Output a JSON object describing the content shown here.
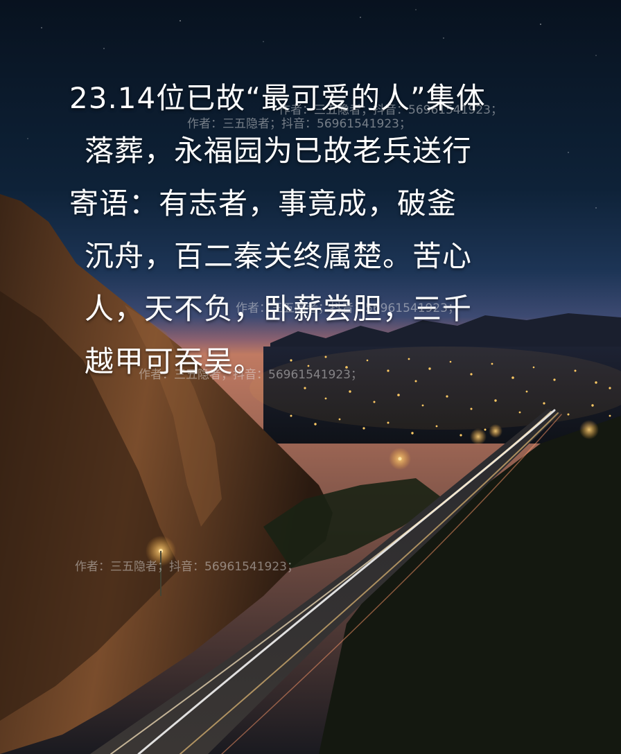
{
  "poem": {
    "lines": [
      "23.14位已故“最可爱的人”集体",
      "落葬，永福园为已故老兵送行",
      "寄语：有志者，事竟成，破釜",
      "沉舟，百二秦关终属楚。苦心",
      "人，天不负，卧薪尝胆，三千",
      "越甲可吞吴。"
    ]
  },
  "watermark": {
    "text": "作者：三五隐者；抖音：56961541923；"
  },
  "colors": {
    "sky_top": "#0a1a2c",
    "sky_horizon": "#3a4a70",
    "horizon_glow": "#b0655a",
    "cliff": "#5a3a24",
    "city_lights": "#ffcc66",
    "text": "#ffffff"
  }
}
